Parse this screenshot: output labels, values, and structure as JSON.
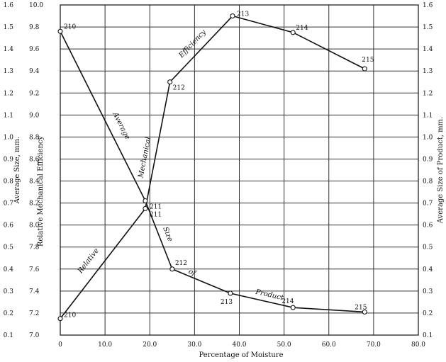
{
  "chart_data": {
    "type": "line",
    "xlabel": "Percentage of Moisture",
    "ylabel_left_outer": "Average Size, mm.",
    "ylabel_left_inner": "Relative Mechanical Efficiency",
    "ylabel_right": "Average Size of Product, mm.",
    "x_ticks": [
      "0",
      "10.0",
      "20.0",
      "30.0",
      "40.0",
      "50.0",
      "60.0",
      "70.0",
      "80.0"
    ],
    "xlim": [
      0,
      80
    ],
    "y_ticks_size": [
      "0.1",
      "0.2",
      "0.3",
      "0.4",
      "0.5",
      "0.6",
      "0.7",
      "0.8",
      "0.9",
      "1.0",
      "1.1",
      "1.2",
      "1.3",
      "1.4",
      "1.5",
      "1.6"
    ],
    "y_ticks_efficiency": [
      "7.0",
      "7.2",
      "7.4",
      "7.6",
      "7.8",
      "8.0",
      "8.2",
      "8.4",
      "8.6",
      "8.8",
      "9.0",
      "9.2",
      "9.4",
      "9.6",
      "9.8",
      "10.0"
    ],
    "y_ticks_right": [
      "0.1",
      "0.2",
      "0.3",
      "0.4",
      "0.5",
      "0.6",
      "0.7",
      "0.8",
      "0.9",
      "1.0",
      "1.1",
      "1.2",
      "1.3",
      "1.4",
      "1.5",
      "1.6"
    ],
    "ylim_size": [
      0.1,
      1.6
    ],
    "ylim_efficiency": [
      7.0,
      10.0
    ],
    "series": [
      {
        "key": "efficiency",
        "axis": "efficiency",
        "curve_words": [
          "Relative",
          "Mechanical",
          "Efficiency"
        ],
        "points": [
          {
            "x": 0.0,
            "y": 7.15,
            "label": "210"
          },
          {
            "x": 19.0,
            "y": 8.15,
            "label": "211"
          },
          {
            "x": 24.5,
            "y": 9.3,
            "label": "212"
          },
          {
            "x": 38.5,
            "y": 9.9,
            "label": "213"
          },
          {
            "x": 52.0,
            "y": 9.75,
            "label": "214"
          },
          {
            "x": 68.0,
            "y": 9.42,
            "label": "215"
          }
        ]
      },
      {
        "key": "size",
        "axis": "size",
        "curve_words": [
          "Average",
          "Size",
          "of",
          "Product"
        ],
        "points": [
          {
            "x": 0.0,
            "y": 1.48,
            "label": "210"
          },
          {
            "x": 19.0,
            "y": 0.71,
            "label": "211"
          },
          {
            "x": 25.0,
            "y": 0.4,
            "label": "212"
          },
          {
            "x": 38.0,
            "y": 0.29,
            "label": "213"
          },
          {
            "x": 52.0,
            "y": 0.225,
            "label": "214"
          },
          {
            "x": 68.0,
            "y": 0.205,
            "label": "215"
          }
        ]
      }
    ]
  }
}
